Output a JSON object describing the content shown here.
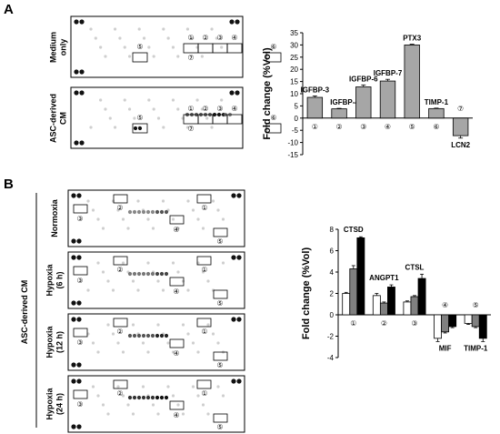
{
  "panels": {
    "A": {
      "letter": "A",
      "blots": [
        {
          "label_lines": [
            "Medium",
            "only"
          ]
        },
        {
          "label_lines": [
            "ASC-derived",
            "CM"
          ]
        }
      ],
      "markers": [
        "①",
        "②",
        "③",
        "④",
        "⑤",
        "⑥",
        "⑦"
      ]
    },
    "B": {
      "letter": "B",
      "group_label": "ASC-derived CM",
      "blots": [
        {
          "label_lines": [
            "Normoxia"
          ]
        },
        {
          "label_lines": [
            "Hypoxia",
            "(6 h)"
          ]
        },
        {
          "label_lines": [
            "Hypoxia",
            "(12 h)"
          ]
        },
        {
          "label_lines": [
            "Hypoxia",
            "(24 h)"
          ]
        }
      ],
      "markers": [
        "①",
        "②",
        "③",
        "④",
        "⑤"
      ]
    }
  },
  "chart_data": [
    {
      "type": "bar",
      "panel": "A",
      "ylabel": "Fold change (%Vol)",
      "ylim": [
        -15,
        35
      ],
      "yticks": [
        -15,
        -10,
        -5,
        0,
        5,
        10,
        15,
        20,
        25,
        30,
        35
      ],
      "grid": false,
      "categories": [
        "①",
        "②",
        "③",
        "④",
        "⑤",
        "⑥",
        "⑦"
      ],
      "labels": [
        "IGFBP-3",
        "IGFBP-4",
        "IGFBP-6",
        "IGFBP-7",
        "PTX3",
        "TIMP-1",
        "LCN2"
      ],
      "values": [
        8.5,
        3.8,
        12.8,
        15.2,
        30.0,
        3.9,
        -7.2
      ],
      "errors": [
        0.6,
        0.2,
        0.8,
        0.7,
        0.3,
        0.2,
        1.0
      ],
      "color": "#a6a6a6"
    },
    {
      "type": "bar",
      "panel": "B",
      "ylabel": "Fold change (%Vol)",
      "ylim": [
        -4,
        8
      ],
      "yticks": [
        -4,
        -2,
        0,
        2,
        4,
        6,
        8
      ],
      "grid": false,
      "categories": [
        "①",
        "②",
        "③",
        "④",
        "⑤"
      ],
      "labels": [
        "CTSD",
        "ANGPT1",
        "CTSL",
        "MIF",
        "TIMP-1"
      ],
      "series": [
        {
          "values": [
            2.0,
            1.8,
            1.2,
            -2.2,
            -0.8
          ],
          "errors": [
            0.1,
            0.2,
            0.1,
            0.3,
            0.1
          ],
          "color": "#ffffff"
        },
        {
          "values": [
            4.3,
            1.1,
            1.7,
            -1.6,
            -1.1
          ],
          "errors": [
            0.3,
            0.1,
            0.1,
            0.1,
            0.1
          ],
          "color": "#808080"
        },
        {
          "values": [
            7.2,
            2.6,
            3.4,
            -1.1,
            -2.2
          ],
          "errors": [
            0.1,
            0.2,
            0.4,
            0.1,
            0.3
          ],
          "color": "#000000"
        }
      ]
    }
  ]
}
